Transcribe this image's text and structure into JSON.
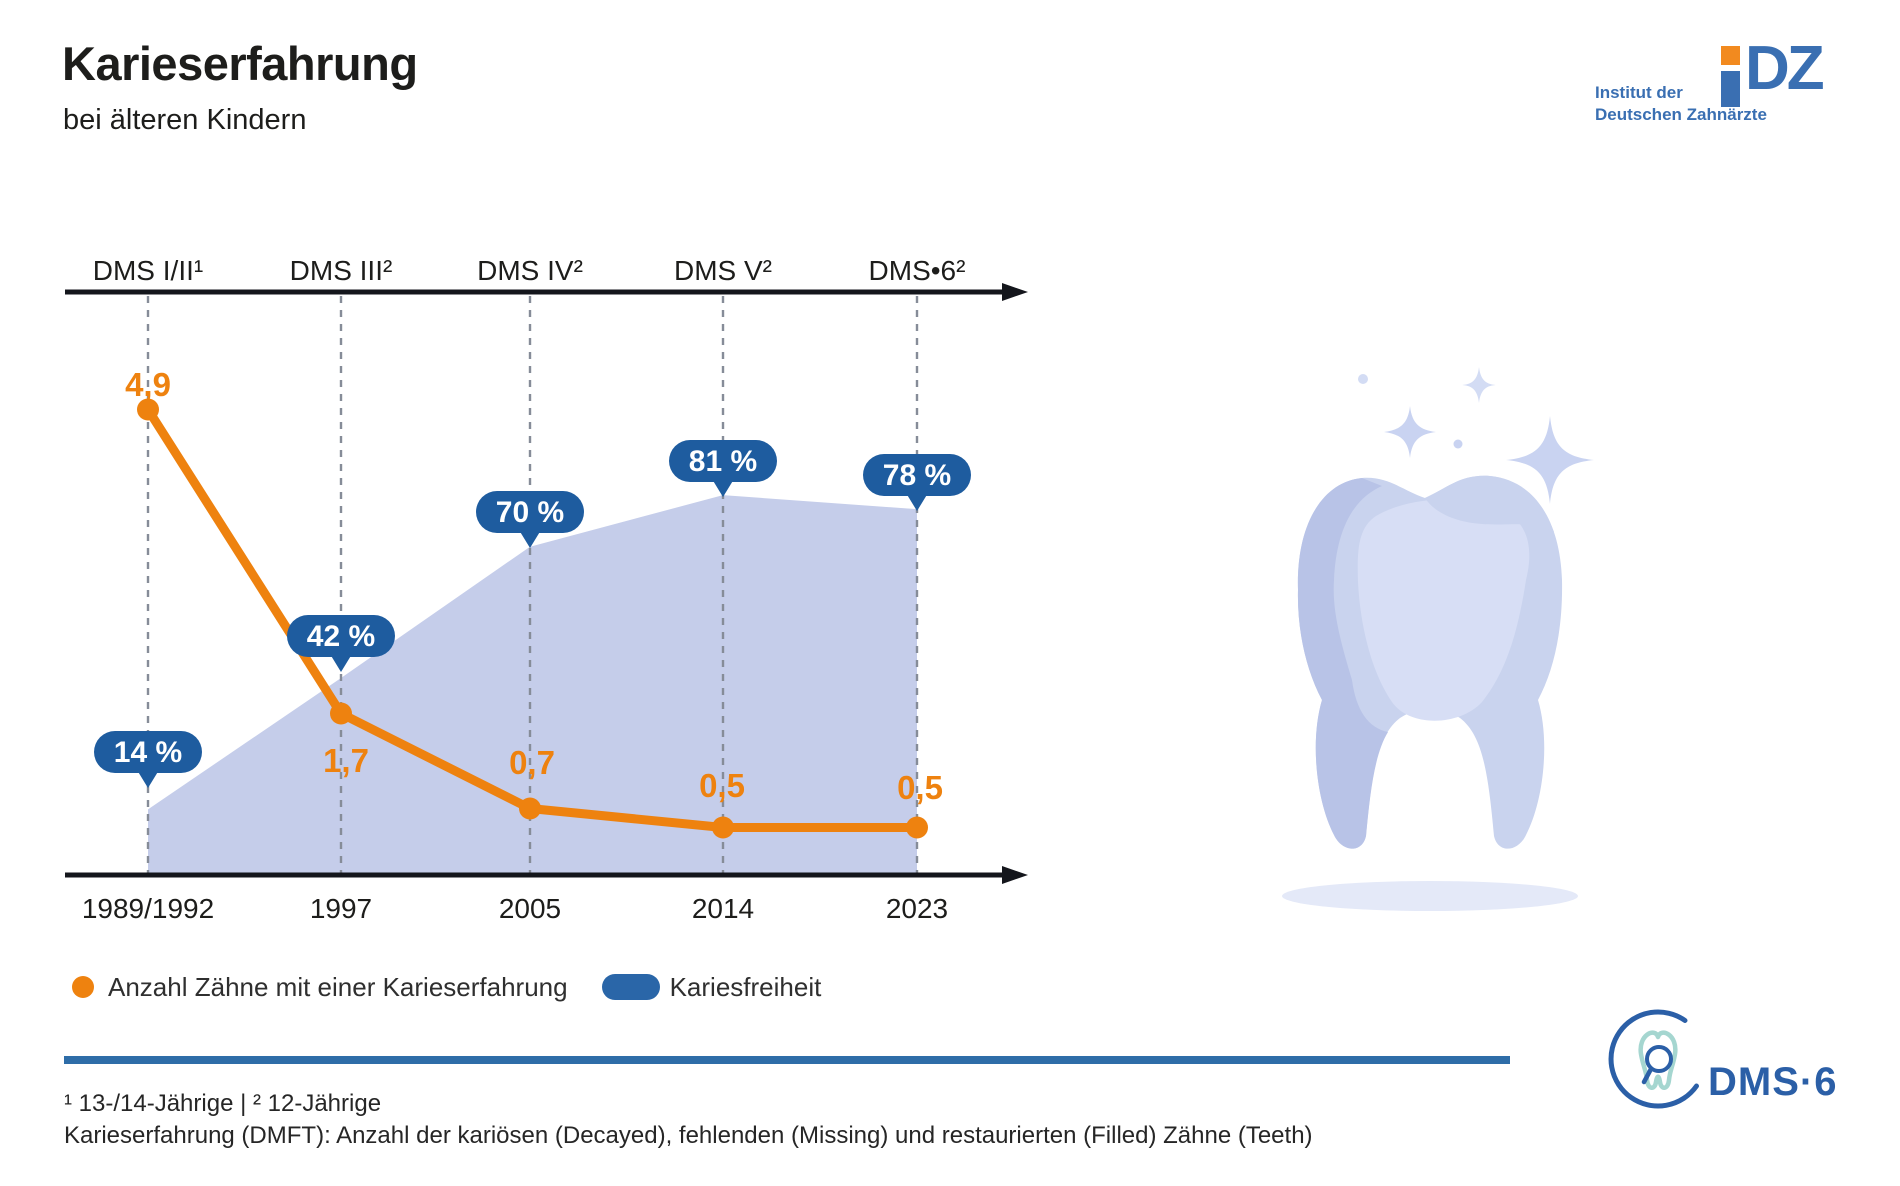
{
  "header": {
    "title": "Karieserfahrung",
    "subtitle": "bei älteren Kindern",
    "idz_logo": {
      "line1": "Institut der",
      "line2": "Deutschen Zahnärzte",
      "mark": "DZ"
    }
  },
  "chart_data": {
    "type": "area+line",
    "title": "Karieserfahrung bei älteren Kindern",
    "categories": [
      "1989/1992",
      "1997",
      "2005",
      "2014",
      "2023"
    ],
    "study_labels": [
      "DMS I/II¹",
      "DMS III²",
      "DMS IV²",
      "DMS V²",
      "DMS•6²"
    ],
    "series": [
      {
        "name": "Anzahl Zähne mit einer Karieserfahrung",
        "type": "line",
        "values": [
          4.9,
          1.7,
          0.7,
          0.5,
          0.5
        ],
        "value_labels": [
          "4,9",
          "1,7",
          "0,7",
          "0,5",
          "0,5"
        ],
        "color": "#EE820F"
      },
      {
        "name": "Kariesfreiheit",
        "type": "area",
        "unit": "%",
        "values": [
          14,
          42,
          70,
          81,
          78
        ],
        "value_labels": [
          "14 %",
          "42 %",
          "70 %",
          "81 %",
          "78 %"
        ],
        "area_color": "#C5CDEA",
        "badge_color": "#1E5C9F"
      }
    ],
    "grid": "dashed-vertical",
    "legend_position": "bottom"
  },
  "legend": {
    "series1": "Anzahl Zähne mit einer Karieserfahrung",
    "series2": "Kariesfreiheit"
  },
  "footnotes": {
    "line1": "¹ 13-/14-Jährige | ² 12-Jährige",
    "line2": "Karieserfahrung (DMFT): Anzahl der kariösen (Decayed), fehlenden (Missing) und restaurierten (Filled) Zähne (Teeth)"
  },
  "footer_logo": {
    "text": "DMS·6"
  },
  "colors": {
    "accent_orange": "#EE820F",
    "badge_blue": "#1E5C9F",
    "area_blue": "#C5CDEA",
    "rule_blue": "#2E6DA8",
    "logo_blue": "#3A6FB2",
    "logo_orange": "#F28A1F",
    "tooth_body": "#CCD6F1",
    "tooth_shade": "#B8C3E7",
    "tooth_highlight": "#D7DEF5",
    "axis_black": "#14161C"
  }
}
